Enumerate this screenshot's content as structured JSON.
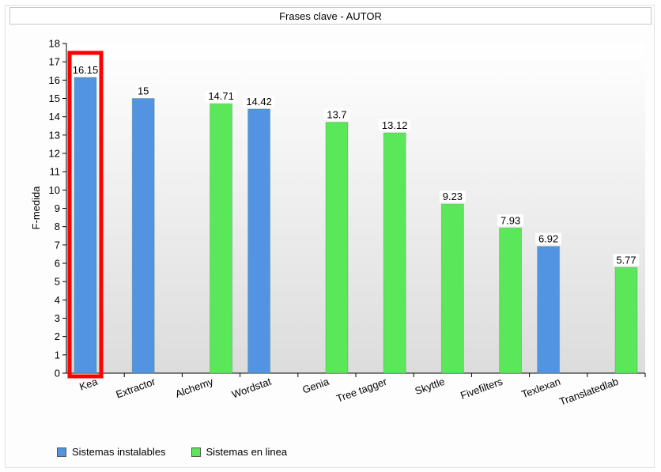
{
  "chart_data": {
    "type": "bar",
    "title": "Frases clave - AUTOR",
    "ylabel": "F-medida",
    "xlabel": "",
    "ylim": [
      0,
      18
    ],
    "yticks": [
      0,
      1,
      2,
      3,
      4,
      5,
      6,
      7,
      8,
      9,
      10,
      11,
      12,
      13,
      14,
      15,
      16,
      17,
      18
    ],
    "categories": [
      "Kea",
      "Extractor",
      "Alchemy",
      "Wordstat",
      "Genia",
      "Tree tagger",
      "Skyttle",
      "Fivefilters",
      "Texlexan",
      "Translatedlab"
    ],
    "series": [
      {
        "name": "Sistemas instalables",
        "color": "#5294e2",
        "values": [
          16.15,
          15,
          null,
          14.42,
          null,
          null,
          null,
          null,
          6.92,
          null
        ]
      },
      {
        "name": "Sistemas en linea",
        "color": "#5ae85a",
        "values": [
          null,
          null,
          14.71,
          null,
          13.7,
          13.12,
          9.23,
          7.93,
          null,
          5.77
        ]
      }
    ],
    "data_labels": [
      "16.15",
      "15",
      "14.71",
      "14.42",
      "13.7",
      "13.12",
      "9.23",
      "7.93",
      "6.92",
      "5.77"
    ],
    "highlight": {
      "category": "Kea",
      "color": "#ff0000"
    },
    "legend_position": "bottom-left",
    "grid": false
  }
}
